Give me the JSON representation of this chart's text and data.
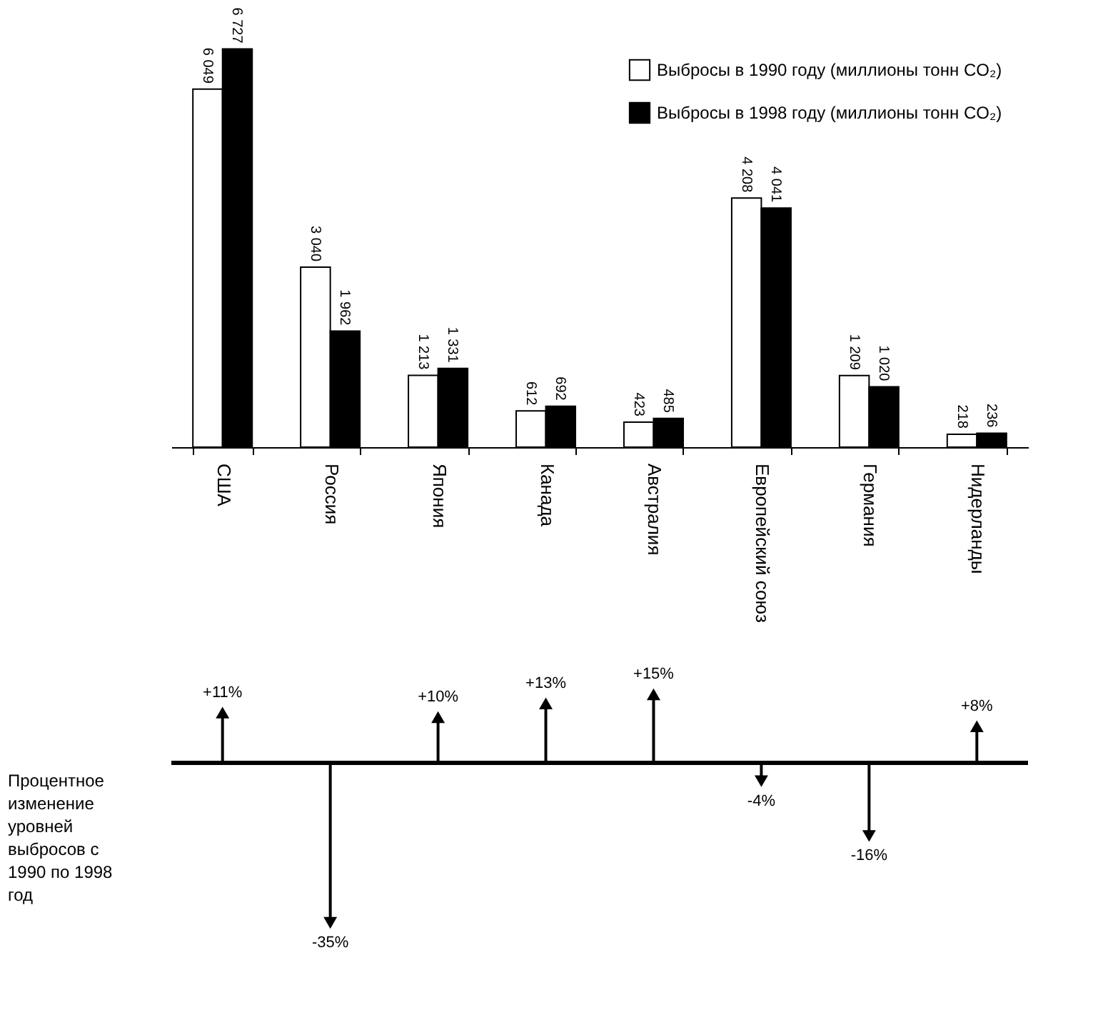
{
  "chart_data": [
    {
      "type": "bar",
      "categories": [
        "США",
        "Россия",
        "Япония",
        "Канада",
        "Австралия",
        "Европейский союз",
        "Германия",
        "Нидерланды"
      ],
      "series": [
        {
          "name": "Выбросы в 1990 году (миллионы тонн CO₂)",
          "color": "#ffffff",
          "values": [
            6049,
            3040,
            1213,
            612,
            423,
            4208,
            1209,
            218
          ],
          "value_labels": [
            "6 049",
            "3 040",
            "1 213",
            "612",
            "423",
            "4 208",
            "1 209",
            "218"
          ]
        },
        {
          "name": "Выбросы в 1998 году (миллионы тонн CO₂)",
          "color": "#000000",
          "values": [
            6727,
            1962,
            1331,
            692,
            485,
            4041,
            1020,
            236
          ],
          "value_labels": [
            "6 727",
            "1 962",
            "1 331",
            "692",
            "485",
            "4 041",
            "1 020",
            "236"
          ]
        }
      ],
      "legend": "top right",
      "grid": false,
      "tick_labels": "x"
    },
    {
      "type": "lollipop",
      "categories": [
        null,
        null,
        null,
        null,
        null,
        null,
        null,
        null
      ],
      "values": [
        11,
        -35,
        10,
        13,
        15,
        -4,
        -16,
        8
      ],
      "value_labels": [
        "+11%",
        "-35%",
        "+10%",
        "+13%",
        "+15%",
        "-4%",
        "-16%",
        "+8%"
      ],
      "color": "#000000",
      "marker": "triangle",
      "ylabel": "Процентное изменение уровней выбросов с 1990 по 1998 год",
      "tick_labels": false,
      "grid": false
    }
  ]
}
